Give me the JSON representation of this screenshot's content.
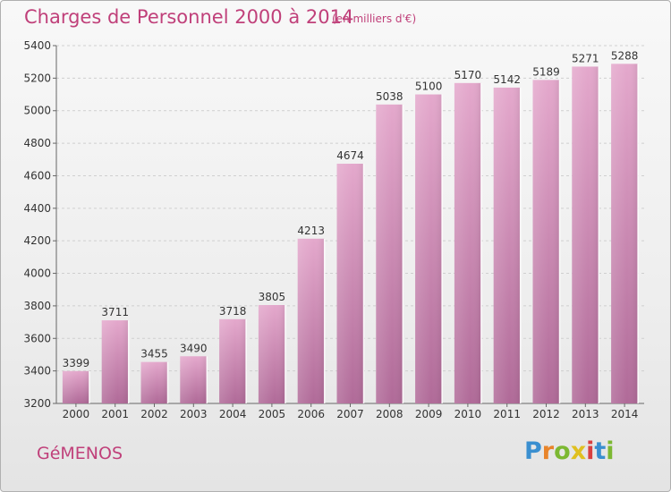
{
  "header": {
    "title": "Charges de Personnel 2000 à 2014",
    "subtitle": "(en milliers d'€)"
  },
  "footer": {
    "city": "GéMENOS",
    "logo": "Proxiti",
    "logo_colors": [
      "#3a8fd0",
      "#e8842a",
      "#7cb832",
      "#e0c020",
      "#d84040",
      "#3a8fd0",
      "#7cb832"
    ]
  },
  "chart_data": {
    "type": "bar",
    "categories": [
      "2000",
      "2001",
      "2002",
      "2003",
      "2004",
      "2005",
      "2006",
      "2007",
      "2008",
      "2009",
      "2010",
      "2011",
      "2012",
      "2013",
      "2014"
    ],
    "values": [
      3399,
      3711,
      3455,
      3490,
      3718,
      3805,
      4213,
      4674,
      5038,
      5100,
      5170,
      5142,
      5189,
      5271,
      5288
    ],
    "ylim": [
      3200,
      5400
    ],
    "yticks": [
      3200,
      3400,
      3600,
      3800,
      4000,
      4200,
      4400,
      4600,
      4800,
      5000,
      5200,
      5400
    ],
    "grid": true,
    "bar_color": "#d992bc",
    "xlabel": "",
    "ylabel": ""
  }
}
